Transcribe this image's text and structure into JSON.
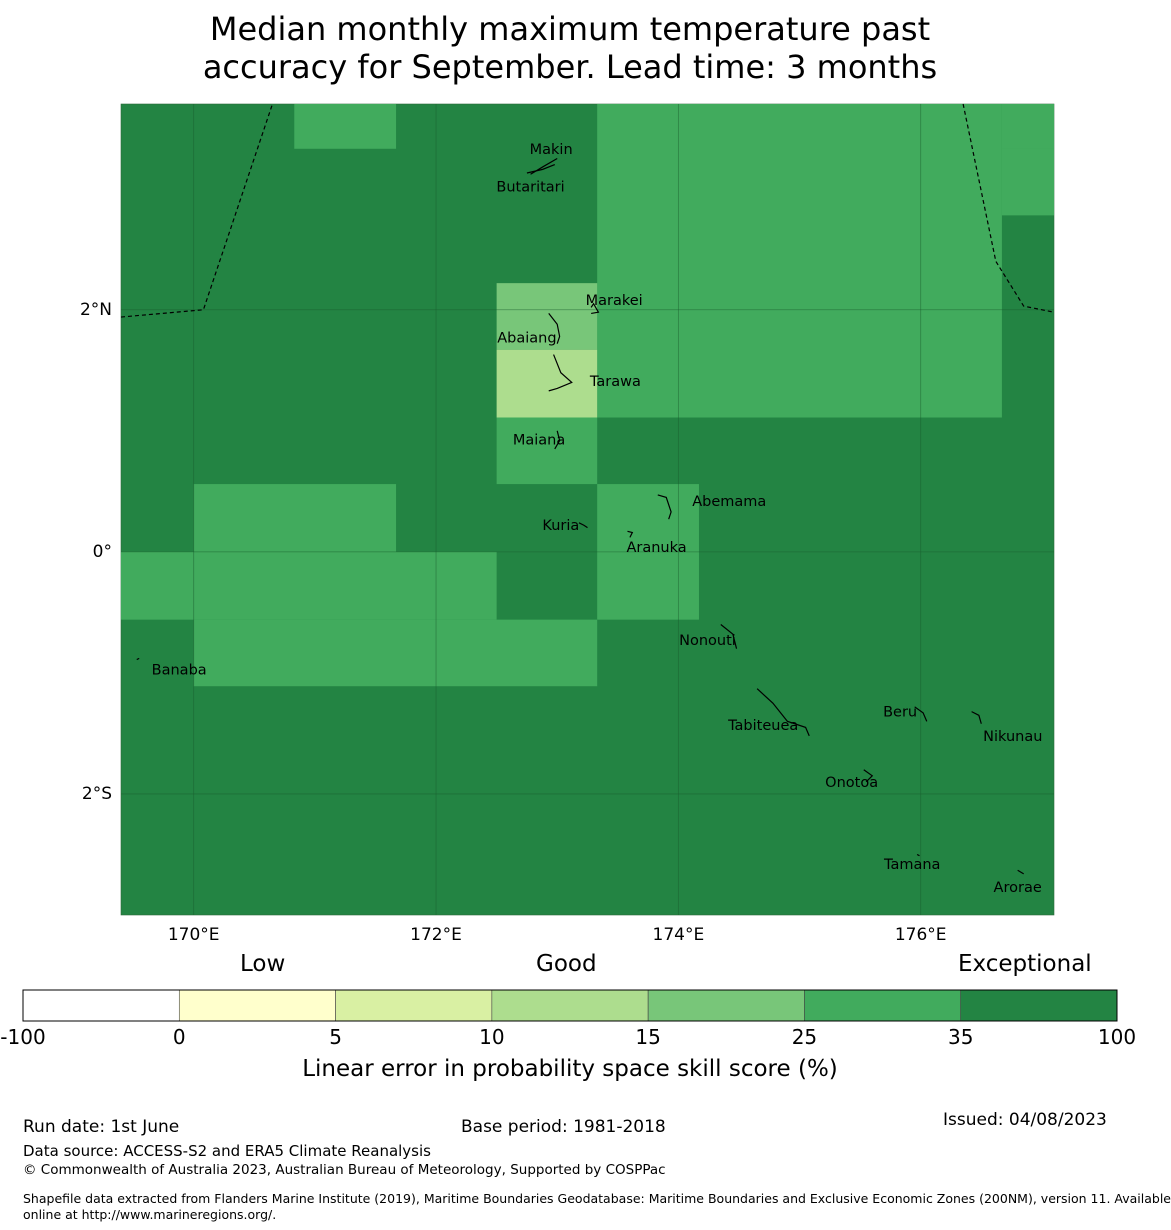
{
  "title_line1": "Median monthly maximum temperature past",
  "title_line2": "accuracy for September. Lead time: 3 months",
  "map": {
    "lon_range": [
      169.4,
      177.1
    ],
    "lat_range": [
      -3.0,
      3.7
    ],
    "x_ticks": [
      {
        "lon": 170,
        "label": "170°E"
      },
      {
        "lon": 172,
        "label": "172°E"
      },
      {
        "lon": 174,
        "label": "174°E"
      },
      {
        "lon": 176,
        "label": "176°E"
      }
    ],
    "y_ticks": [
      {
        "lat": 2,
        "label": "2°N"
      },
      {
        "lat": 0,
        "label": "0°"
      },
      {
        "lat": -2,
        "label": "2°S"
      }
    ],
    "grid": true,
    "background_class": "35-100",
    "cells": [
      {
        "lon": [
          170.83,
          171.67
        ],
        "lat": [
          3.33,
          3.7
        ],
        "class": "25-35"
      },
      {
        "lon": [
          173.33,
          176.67
        ],
        "lat": [
          1.11,
          3.7
        ],
        "class": "25-35"
      },
      {
        "lon": [
          176.67,
          177.1
        ],
        "lat": [
          2.78,
          3.7
        ],
        "class": "25-35"
      },
      {
        "lon": [
          176.67,
          177.1
        ],
        "lat": [
          3.33,
          3.7
        ],
        "class": "25-35"
      },
      {
        "lon": [
          172.5,
          173.33
        ],
        "lat": [
          1.67,
          2.22
        ],
        "class": "15-25"
      },
      {
        "lon": [
          172.5,
          173.33
        ],
        "lat": [
          1.11,
          1.67
        ],
        "class": "10-15"
      },
      {
        "lon": [
          172.5,
          173.33
        ],
        "lat": [
          0.56,
          1.11
        ],
        "class": "25-35"
      },
      {
        "lon": [
          173.33,
          174.17
        ],
        "lat": [
          -0.56,
          0.56
        ],
        "class": "25-35"
      },
      {
        "lon": [
          170.0,
          171.67
        ],
        "lat": [
          0.0,
          0.56
        ],
        "class": "25-35"
      },
      {
        "lon": [
          169.4,
          172.5
        ],
        "lat": [
          -0.56,
          0.0
        ],
        "class": "25-35"
      },
      {
        "lon": [
          170.0,
          173.33
        ],
        "lat": [
          -1.11,
          -0.56
        ],
        "class": "25-35"
      }
    ],
    "boundaries": [
      [
        [
          169.4,
          1.94
        ],
        [
          170.08,
          2.0
        ],
        [
          170.65,
          3.7
        ]
      ],
      [
        [
          176.35,
          3.7
        ],
        [
          176.62,
          2.4
        ],
        [
          176.85,
          2.03
        ],
        [
          177.1,
          1.98
        ]
      ]
    ],
    "islands": [
      {
        "name": "Makin",
        "label_lon": 172.95,
        "label_lat": 3.33,
        "pts": [
          [
            173.0,
            3.25
          ],
          [
            172.88,
            3.18
          ],
          [
            172.78,
            3.12
          ]
        ]
      },
      {
        "name": "Butaritari",
        "label_lon": 172.78,
        "label_lat": 3.02,
        "pts": [
          [
            172.75,
            3.13
          ],
          [
            172.88,
            3.16
          ],
          [
            172.98,
            3.2
          ]
        ]
      },
      {
        "name": "Marakei",
        "label_lon": 173.47,
        "label_lat": 2.08,
        "pts": [
          [
            173.28,
            2.02
          ],
          [
            173.3,
            2.05
          ],
          [
            173.34,
            1.98
          ],
          [
            173.28,
            1.97
          ]
        ]
      },
      {
        "name": "Abaiang",
        "label_lon": 172.75,
        "label_lat": 1.77,
        "pts": [
          [
            172.93,
            1.97
          ],
          [
            173.0,
            1.88
          ],
          [
            173.02,
            1.78
          ],
          [
            173.0,
            1.72
          ]
        ]
      },
      {
        "name": "Tarawa",
        "label_lon": 173.48,
        "label_lat": 1.41,
        "pts": [
          [
            172.97,
            1.63
          ],
          [
            173.03,
            1.48
          ],
          [
            173.12,
            1.4
          ],
          [
            173.0,
            1.35
          ],
          [
            172.93,
            1.33
          ]
        ]
      },
      {
        "name": "Maiana",
        "label_lon": 172.85,
        "label_lat": 0.93,
        "pts": [
          [
            173.0,
            1.0
          ],
          [
            173.02,
            0.92
          ],
          [
            172.98,
            0.85
          ]
        ]
      },
      {
        "name": "Abemama",
        "label_lon": 174.42,
        "label_lat": 0.42,
        "pts": [
          [
            173.83,
            0.47
          ],
          [
            173.9,
            0.45
          ],
          [
            173.94,
            0.33
          ],
          [
            173.92,
            0.27
          ]
        ]
      },
      {
        "name": "Kuria",
        "label_lon": 173.03,
        "label_lat": 0.22,
        "pts": [
          [
            173.18,
            0.24
          ],
          [
            173.22,
            0.22
          ],
          [
            173.25,
            0.2
          ]
        ]
      },
      {
        "name": "Aranuka",
        "label_lon": 173.82,
        "label_lat": 0.04,
        "pts": [
          [
            173.58,
            0.17
          ],
          [
            173.62,
            0.16
          ],
          [
            173.6,
            0.12
          ]
        ]
      },
      {
        "name": "Nonouti",
        "label_lon": 174.24,
        "label_lat": -0.73,
        "pts": [
          [
            174.35,
            -0.6
          ],
          [
            174.45,
            -0.68
          ],
          [
            174.48,
            -0.8
          ]
        ]
      },
      {
        "name": "Banaba",
        "label_lon": 169.88,
        "label_lat": -0.97,
        "pts": [
          [
            169.53,
            -0.89
          ],
          [
            169.55,
            -0.88
          ]
        ]
      },
      {
        "name": "Tabiteuea",
        "label_lon": 174.7,
        "label_lat": -1.43,
        "pts": [
          [
            174.65,
            -1.13
          ],
          [
            174.78,
            -1.25
          ],
          [
            174.9,
            -1.4
          ],
          [
            175.05,
            -1.45
          ],
          [
            175.08,
            -1.52
          ]
        ]
      },
      {
        "name": "Beru",
        "label_lon": 175.83,
        "label_lat": -1.32,
        "pts": [
          [
            175.95,
            -1.28
          ],
          [
            176.02,
            -1.33
          ],
          [
            176.05,
            -1.4
          ]
        ]
      },
      {
        "name": "Nikunau",
        "label_lon": 176.76,
        "label_lat": -1.52,
        "pts": [
          [
            176.42,
            -1.32
          ],
          [
            176.48,
            -1.35
          ],
          [
            176.5,
            -1.42
          ]
        ]
      },
      {
        "name": "Onotoa",
        "label_lon": 175.43,
        "label_lat": -1.9,
        "pts": [
          [
            175.53,
            -1.8
          ],
          [
            175.6,
            -1.85
          ],
          [
            175.55,
            -1.9
          ]
        ]
      },
      {
        "name": "Tamana",
        "label_lon": 175.93,
        "label_lat": -2.58,
        "pts": [
          [
            175.97,
            -2.5
          ],
          [
            175.99,
            -2.51
          ]
        ]
      },
      {
        "name": "Arorae",
        "label_lon": 176.8,
        "label_lat": -2.77,
        "pts": [
          [
            176.8,
            -2.63
          ],
          [
            176.85,
            -2.66
          ]
        ]
      }
    ]
  },
  "colorbar": {
    "segments": [
      {
        "from": -100,
        "to": 0,
        "color": "#ffffff"
      },
      {
        "from": 0,
        "to": 5,
        "color": "#ffffcc"
      },
      {
        "from": 5,
        "to": 10,
        "color": "#d9f0a3"
      },
      {
        "from": 10,
        "to": 15,
        "color": "#addd8e"
      },
      {
        "from": 15,
        "to": 25,
        "color": "#78c679"
      },
      {
        "from": 25,
        "to": 35,
        "color": "#41ab5d"
      },
      {
        "from": 35,
        "to": 100,
        "color": "#238443"
      }
    ],
    "tick_labels": [
      "-100",
      "0",
      "5",
      "10",
      "15",
      "25",
      "35",
      "100"
    ],
    "categories": {
      "low": "Low",
      "good": "Good",
      "exceptional": "Exceptional"
    },
    "label": "Linear error in probability space skill score (%)"
  },
  "class_colors": {
    "10-15": "#addd8e",
    "15-25": "#78c679",
    "25-35": "#41ab5d",
    "35-100": "#238443"
  },
  "footer": {
    "run_date": "Run date: 1st June",
    "base_period": "Base period: 1981-2018",
    "issued": "Issued: 04/08/2023",
    "data_source": "Data source: ACCESS-S2 and ERA5 Climate Reanalysis",
    "copyright": "© Commonwealth of Australia 2023, Australian Bureau of Meteorology, Supported by COSPPac",
    "shapefile_line1": "Shapefile data extracted from Flanders Marine Institute (2019), Maritime Boundaries Geodatabase: Maritime Boundaries and Exclusive Economic Zones (200NM), version 11. Available",
    "shapefile_line2": "online at http://www.marineregions.org/."
  }
}
